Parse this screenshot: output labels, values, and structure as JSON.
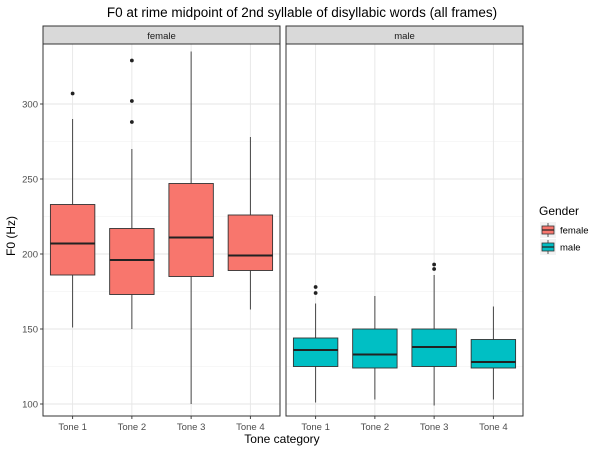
{
  "chart_data": {
    "type": "boxplot",
    "title": "F0 at rime midpoint of 2nd syllable of disyllabic words (all frames)",
    "xlabel": "Tone category",
    "ylabel": "F0 (Hz)",
    "ylim": [
      92,
      340
    ],
    "yticks": [
      100,
      150,
      200,
      250,
      300
    ],
    "categories": [
      "Tone 1",
      "Tone 2",
      "Tone 3",
      "Tone 4"
    ],
    "grid": true,
    "legend": {
      "title": "Gender",
      "position": "right",
      "entries": [
        {
          "label": "female",
          "color": "#F8766D"
        },
        {
          "label": "male",
          "color": "#00BFC4"
        }
      ]
    },
    "facets": [
      {
        "label": "female",
        "color": "#F8766D",
        "boxes": [
          {
            "category": "Tone 1",
            "whisker_low": 151,
            "q1": 186,
            "median": 207,
            "q3": 233,
            "whisker_high": 290,
            "outliers": [
              307
            ]
          },
          {
            "category": "Tone 2",
            "whisker_low": 150,
            "q1": 173,
            "median": 196,
            "q3": 217,
            "whisker_high": 270,
            "outliers": [
              288,
              302,
              329
            ]
          },
          {
            "category": "Tone 3",
            "whisker_low": 100,
            "q1": 185,
            "median": 211,
            "q3": 247,
            "whisker_high": 335,
            "outliers": []
          },
          {
            "category": "Tone 4",
            "whisker_low": 163,
            "q1": 189,
            "median": 199,
            "q3": 226,
            "whisker_high": 278,
            "outliers": []
          }
        ]
      },
      {
        "label": "male",
        "color": "#00BFC4",
        "boxes": [
          {
            "category": "Tone 1",
            "whisker_low": 101,
            "q1": 125,
            "median": 136,
            "q3": 144,
            "whisker_high": 167,
            "outliers": [
              174,
              178
            ]
          },
          {
            "category": "Tone 2",
            "whisker_low": 103,
            "q1": 124,
            "median": 133,
            "q3": 150,
            "whisker_high": 172,
            "outliers": []
          },
          {
            "category": "Tone 3",
            "whisker_low": 99,
            "q1": 125,
            "median": 138,
            "q3": 150,
            "whisker_high": 186,
            "outliers": [
              190,
              193
            ]
          },
          {
            "category": "Tone 4",
            "whisker_low": 103,
            "q1": 124,
            "median": 128,
            "q3": 143,
            "whisker_high": 165,
            "outliers": []
          }
        ]
      }
    ]
  }
}
